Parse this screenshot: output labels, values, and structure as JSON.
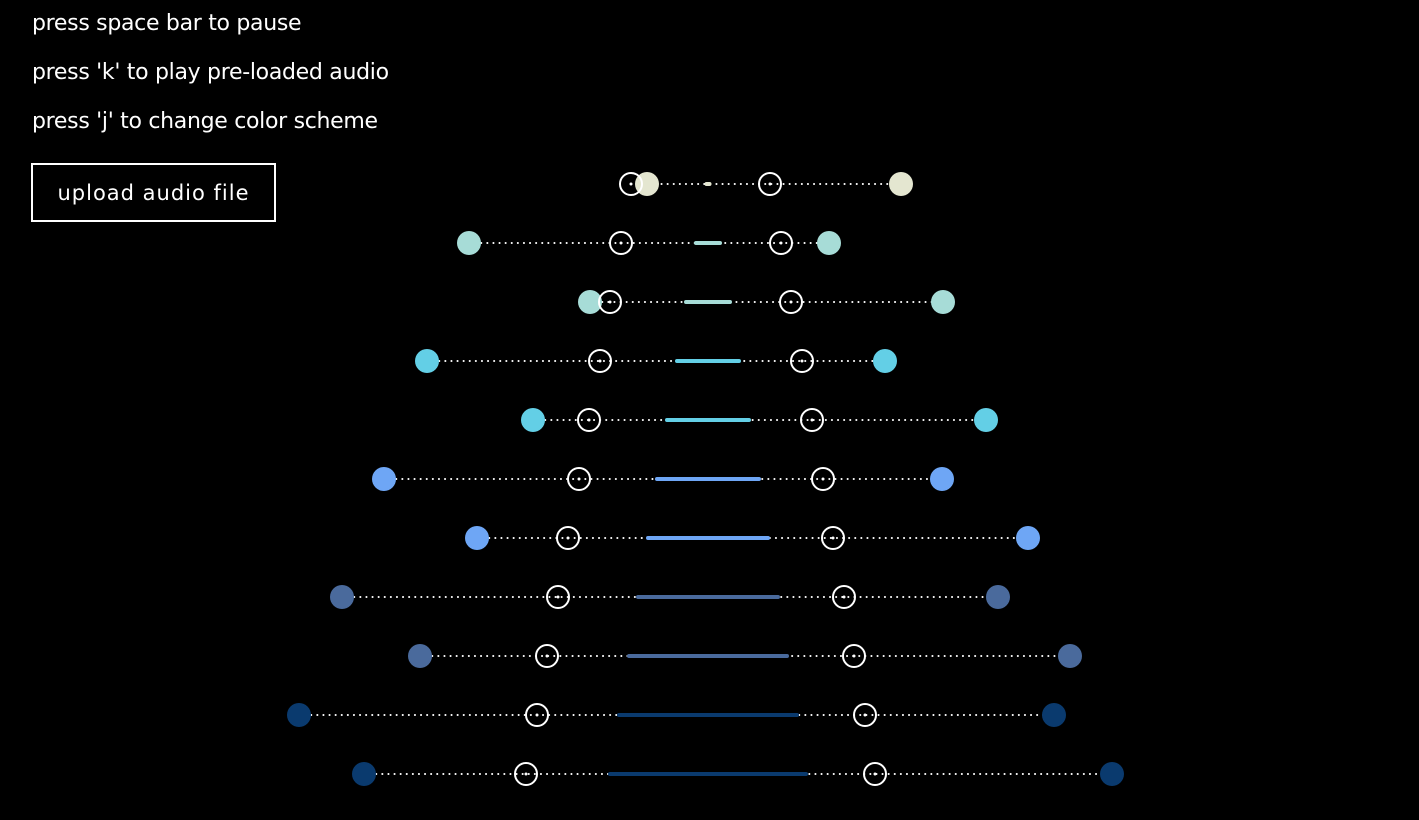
{
  "instructions": [
    "press space bar to pause",
    "press 'k' to play pre-loaded audio",
    "press 'j' to change color scheme"
  ],
  "upload_button_label": "upload audio file",
  "colors": {
    "background": "#000000",
    "marker_outline": "#ffffff",
    "dotted_line": "#ffffff",
    "row_colors": [
      "#e4e6d0",
      "#a7dcd7",
      "#a7dcd7",
      "#63cfe6",
      "#63cfe6",
      "#6ea6f5",
      "#6ea6f5",
      "#4a6a9c",
      "#4a6a9c",
      "#0a3a6e",
      "#0a3a6e"
    ]
  },
  "visualizer": {
    "rows": [
      {
        "outer_left": 647,
        "inner_left": 631,
        "center_width": 3,
        "inner_right": 770,
        "outer_right": 901
      },
      {
        "outer_left": 469,
        "inner_left": 621,
        "center_width": 24,
        "inner_right": 781,
        "outer_right": 829
      },
      {
        "outer_left": 590,
        "inner_left": 610,
        "center_width": 44,
        "inner_right": 791,
        "outer_right": 943
      },
      {
        "outer_left": 427,
        "inner_left": 600,
        "center_width": 62,
        "inner_right": 802,
        "outer_right": 885
      },
      {
        "outer_left": 533,
        "inner_left": 589,
        "center_width": 82,
        "inner_right": 812,
        "outer_right": 986
      },
      {
        "outer_left": 384,
        "inner_left": 579,
        "center_width": 102,
        "inner_right": 823,
        "outer_right": 942
      },
      {
        "outer_left": 477,
        "inner_left": 568,
        "center_width": 120,
        "inner_right": 833,
        "outer_right": 1028
      },
      {
        "outer_left": 342,
        "inner_left": 558,
        "center_width": 140,
        "inner_right": 844,
        "outer_right": 998
      },
      {
        "outer_left": 420,
        "inner_left": 547,
        "center_width": 158,
        "inner_right": 854,
        "outer_right": 1070
      },
      {
        "outer_left": 299,
        "inner_left": 537,
        "center_width": 178,
        "inner_right": 865,
        "outer_right": 1054
      },
      {
        "outer_left": 364,
        "inner_left": 526,
        "center_width": 196,
        "inner_right": 875,
        "outer_right": 1112
      }
    ]
  }
}
